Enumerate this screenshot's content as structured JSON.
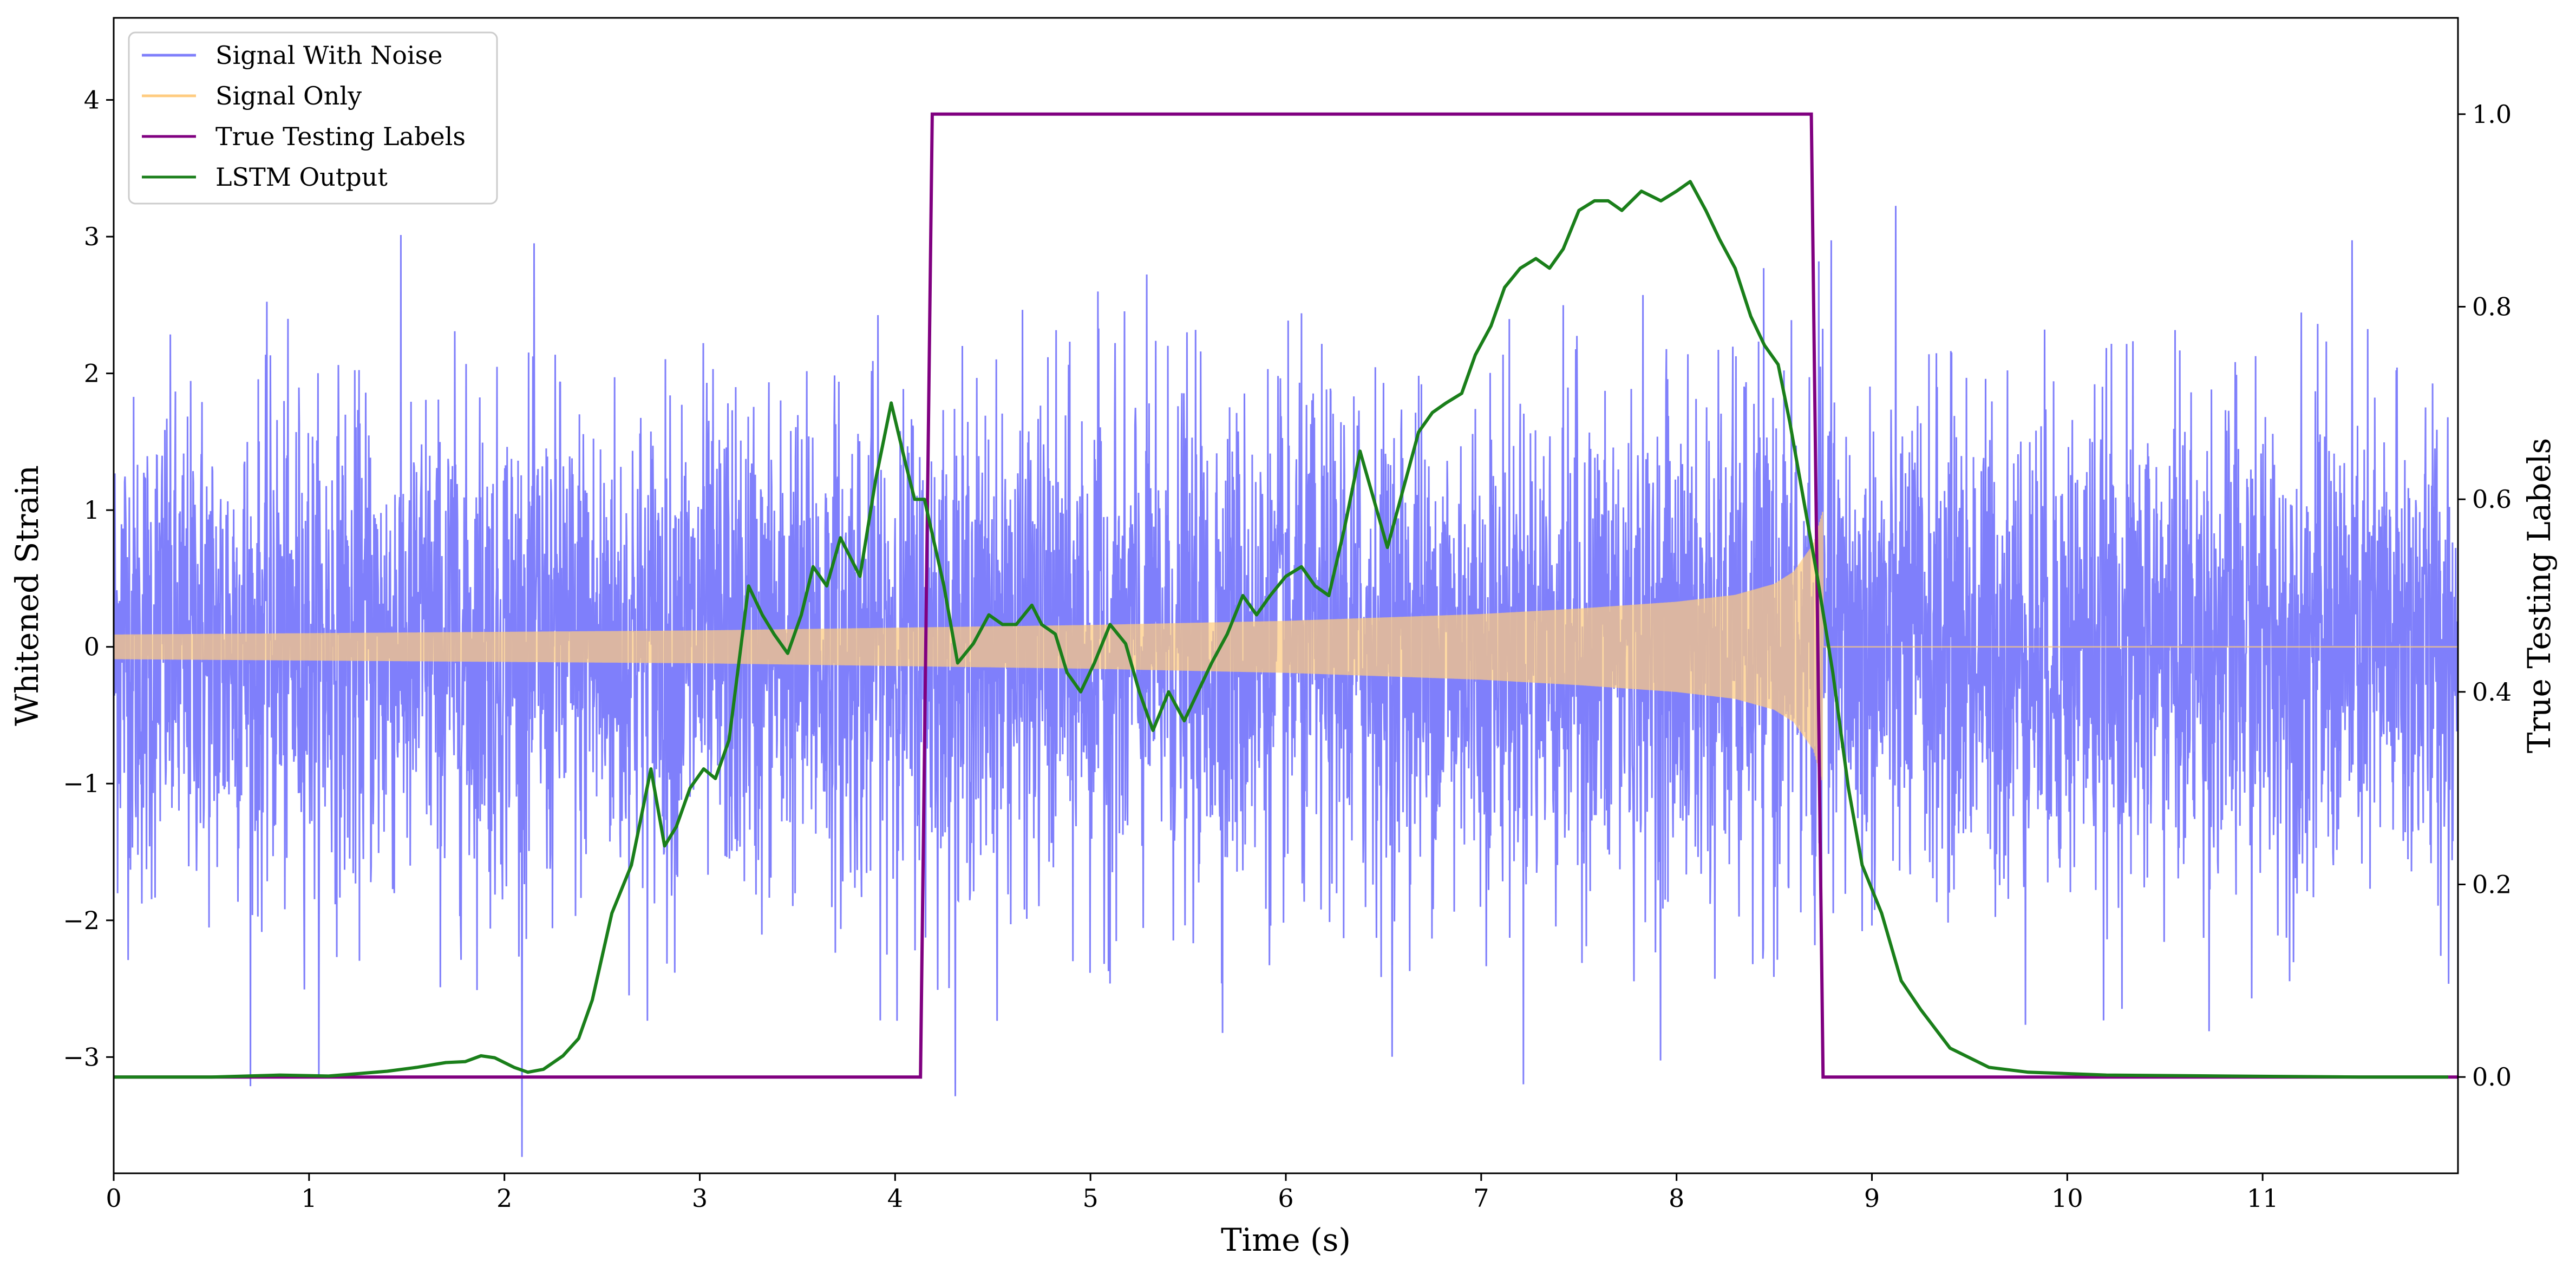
{
  "chart_data": {
    "type": "line",
    "xlabel": "Time (s)",
    "ylabel": "Whitened Strain",
    "y2label": "True Testing Labels",
    "xlim": [
      0,
      12
    ],
    "ylim": [
      -3.85,
      4.6
    ],
    "y2lim": [
      -0.1,
      1.1
    ],
    "x_ticks": [
      0,
      1,
      2,
      3,
      4,
      5,
      6,
      7,
      8,
      9,
      10,
      11
    ],
    "y_ticks": [
      -3,
      -2,
      -1,
      0,
      1,
      2,
      3,
      4
    ],
    "y2_ticks": [
      0.0,
      0.2,
      0.4,
      0.6,
      0.8,
      1.0
    ],
    "x_tick_labels": [
      "0",
      "1",
      "2",
      "3",
      "4",
      "5",
      "6",
      "7",
      "8",
      "9",
      "10",
      "11"
    ],
    "y_tick_labels": [
      "−3",
      "−2",
      "−1",
      "0",
      "1",
      "2",
      "3",
      "4"
    ],
    "y2_tick_labels": [
      "0.0",
      "0.2",
      "0.4",
      "0.6",
      "0.8",
      "1.0"
    ],
    "legend_position": "top-left",
    "grid": false,
    "series": [
      {
        "name": "Signal With Noise",
        "axis": "left",
        "color": "#7f7ffb",
        "noise_std": 0.9,
        "x_range": [
          0,
          12
        ],
        "sample_points": 6000
      },
      {
        "name": "Signal Only",
        "axis": "left",
        "color": "#ffcc80",
        "chirp_envelope": {
          "x": [
            0,
            1,
            2,
            3,
            4,
            5,
            6,
            7,
            7.5,
            8,
            8.3,
            8.5,
            8.6,
            8.7,
            8.75
          ],
          "amplitude": [
            0.09,
            0.1,
            0.11,
            0.12,
            0.14,
            0.16,
            0.19,
            0.24,
            0.28,
            0.33,
            0.38,
            0.46,
            0.55,
            0.75,
            1.0
          ]
        },
        "after_merger": {
          "x": [
            8.75,
            12
          ],
          "value": 0
        }
      },
      {
        "name": "True Testing Labels",
        "axis": "right",
        "color": "#800080",
        "x": [
          0,
          4.13,
          4.19,
          8.69,
          8.75,
          12
        ],
        "y": [
          0,
          0,
          1,
          1,
          0,
          0
        ]
      },
      {
        "name": "LSTM Output",
        "axis": "right",
        "color": "#1a7f1a",
        "x": [
          0,
          0.5,
          0.85,
          1.1,
          1.4,
          1.55,
          1.7,
          1.8,
          1.88,
          1.95,
          2.05,
          2.12,
          2.2,
          2.3,
          2.38,
          2.45,
          2.55,
          2.65,
          2.75,
          2.82,
          2.88,
          2.95,
          3.02,
          3.08,
          3.15,
          3.25,
          3.32,
          3.38,
          3.45,
          3.52,
          3.58,
          3.65,
          3.72,
          3.82,
          3.9,
          3.98,
          4.05,
          4.1,
          4.15,
          4.25,
          4.32,
          4.4,
          4.48,
          4.55,
          4.62,
          4.7,
          4.75,
          4.82,
          4.88,
          4.95,
          5.02,
          5.1,
          5.18,
          5.25,
          5.32,
          5.4,
          5.48,
          5.55,
          5.62,
          5.7,
          5.78,
          5.85,
          5.92,
          6.0,
          6.08,
          6.15,
          6.22,
          6.3,
          6.38,
          6.45,
          6.52,
          6.6,
          6.68,
          6.75,
          6.82,
          6.9,
          6.97,
          7.05,
          7.12,
          7.2,
          7.28,
          7.35,
          7.42,
          7.5,
          7.58,
          7.65,
          7.72,
          7.82,
          7.92,
          8.0,
          8.07,
          8.15,
          8.22,
          8.3,
          8.38,
          8.45,
          8.52,
          8.58,
          8.65,
          8.72,
          8.8,
          8.88,
          8.95,
          9.05,
          9.15,
          9.25,
          9.4,
          9.6,
          9.8,
          10.2,
          10.8,
          11.5,
          11.95
        ],
        "y": [
          0.0,
          0.0,
          0.002,
          0.001,
          0.006,
          0.01,
          0.015,
          0.016,
          0.022,
          0.02,
          0.01,
          0.005,
          0.008,
          0.022,
          0.04,
          0.08,
          0.17,
          0.22,
          0.32,
          0.24,
          0.26,
          0.3,
          0.32,
          0.31,
          0.35,
          0.51,
          0.48,
          0.46,
          0.44,
          0.48,
          0.53,
          0.51,
          0.56,
          0.52,
          0.62,
          0.7,
          0.64,
          0.6,
          0.6,
          0.51,
          0.43,
          0.45,
          0.48,
          0.47,
          0.47,
          0.49,
          0.47,
          0.46,
          0.42,
          0.4,
          0.43,
          0.47,
          0.45,
          0.4,
          0.36,
          0.4,
          0.37,
          0.4,
          0.43,
          0.46,
          0.5,
          0.48,
          0.5,
          0.52,
          0.53,
          0.51,
          0.5,
          0.57,
          0.65,
          0.6,
          0.55,
          0.61,
          0.67,
          0.69,
          0.7,
          0.71,
          0.75,
          0.78,
          0.82,
          0.84,
          0.85,
          0.84,
          0.86,
          0.9,
          0.91,
          0.91,
          0.9,
          0.92,
          0.91,
          0.92,
          0.93,
          0.9,
          0.87,
          0.84,
          0.79,
          0.76,
          0.74,
          0.68,
          0.6,
          0.52,
          0.42,
          0.3,
          0.22,
          0.17,
          0.1,
          0.07,
          0.03,
          0.01,
          0.005,
          0.002,
          0.001,
          0.0,
          0.0
        ]
      }
    ]
  }
}
